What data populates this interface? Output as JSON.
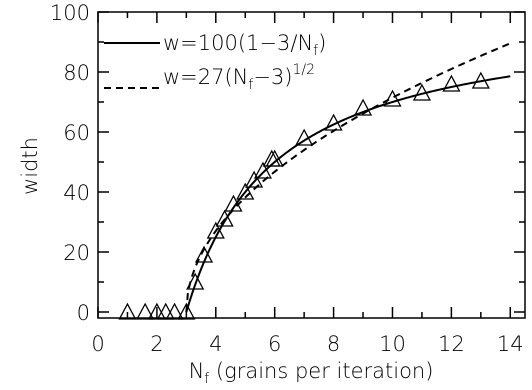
{
  "chart_data": {
    "type": "line",
    "xlabel": "N_f (grains per iteration)",
    "ylabel": "width",
    "xlim": [
      0,
      14.5
    ],
    "ylim": [
      -2,
      100
    ],
    "xticks": [
      0,
      2,
      4,
      6,
      8,
      10,
      12,
      14
    ],
    "yticks": [
      0,
      20,
      40,
      60,
      80,
      100
    ],
    "legend": [
      {
        "label": "w=100(1-3/N_f)",
        "style": "solid"
      },
      {
        "label": "w=27(N_f-3)^(1/2)",
        "style": "dashed"
      }
    ],
    "series": [
      {
        "name": "data",
        "marker": "triangle",
        "x": [
          1.0,
          1.6,
          2.0,
          2.3,
          2.6,
          3.0,
          3.3,
          3.6,
          4.0,
          4.3,
          4.6,
          5.0,
          5.3,
          5.6,
          5.9,
          6.0,
          7.0,
          8.0,
          9.0,
          10.0,
          11.0,
          12.0,
          13.0
        ],
        "y": [
          0,
          0,
          0,
          0,
          0,
          0,
          10,
          19,
          27,
          31,
          36,
          40,
          44,
          47,
          51,
          51,
          58,
          63,
          68,
          71,
          73,
          76,
          77
        ]
      },
      {
        "name": "w=100(1-3/N_f)",
        "style": "solid",
        "formula": "100*(1-3/x)",
        "x_start": 3.0,
        "x_end": 14.0
      },
      {
        "name": "w=27(N_f-3)^(1/2)",
        "style": "dashed",
        "formula": "27*sqrt(x-3)",
        "x_start": 3.0,
        "x_end": 14.0
      }
    ]
  },
  "labels": {
    "xlabel_main": "N",
    "xlabel_sub": "f",
    "xlabel_rest": " (grains per iteration)",
    "ylabel": "width",
    "legend1_a": "w=100(1−3/N",
    "legend1_sub": "f",
    "legend1_b": ")",
    "legend2_a": "w=27(N",
    "legend2_sub": "f",
    "legend2_b": "−3)",
    "legend2_sup": "1/2"
  }
}
